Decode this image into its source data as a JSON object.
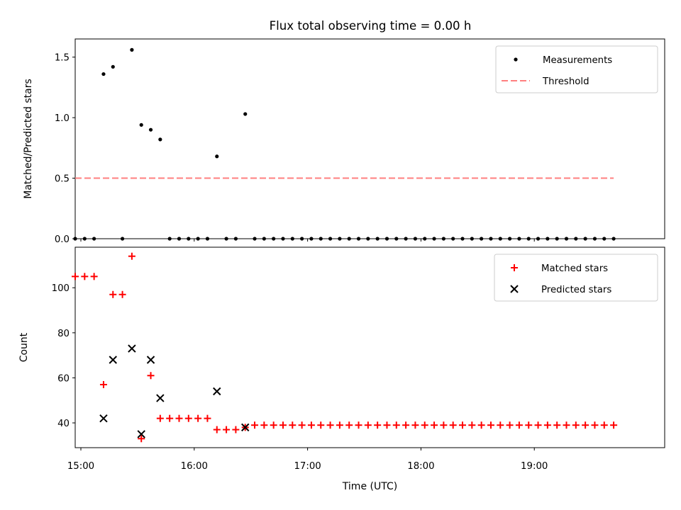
{
  "figure": {
    "title": "Flux total observing time = 0.00 h"
  },
  "chart_data": [
    {
      "type": "scatter",
      "ylabel": "Matched/Predicted stars",
      "xlabel": "",
      "xlim": [
        "14:57",
        "20:09"
      ],
      "ylim": [
        0,
        1.65
      ],
      "yticks": [
        0.0,
        0.5,
        1.0,
        1.5
      ],
      "ytick_labels": [
        "0.0",
        "0.5",
        "1.0",
        "1.5"
      ],
      "xticks": [
        "15:00",
        "16:00",
        "17:00",
        "18:00",
        "19:00"
      ],
      "legend": {
        "placement": "top-right",
        "entries": [
          "Measurements",
          "Threshold"
        ]
      },
      "series": [
        {
          "name": "Measurements",
          "color": "#000000",
          "marker": "dot",
          "points": [
            [
              "14:57",
              0.0
            ],
            [
              "15:02",
              0.0
            ],
            [
              "15:07",
              0.0
            ],
            [
              "15:12",
              1.36
            ],
            [
              "15:17",
              1.42
            ],
            [
              "15:22",
              0.0
            ],
            [
              "15:27",
              1.56
            ],
            [
              "15:32",
              0.94
            ],
            [
              "15:37",
              0.9
            ],
            [
              "15:42",
              0.82
            ],
            [
              "15:47",
              0.0
            ],
            [
              "15:52",
              0.0
            ],
            [
              "15:57",
              0.0
            ],
            [
              "16:02",
              0.0
            ],
            [
              "16:07",
              0.0
            ],
            [
              "16:12",
              0.68
            ],
            [
              "16:17",
              0.0
            ],
            [
              "16:22",
              0.0
            ],
            [
              "16:27",
              1.03
            ],
            [
              "16:32",
              0.0
            ],
            [
              "16:37",
              0.0
            ],
            [
              "16:42",
              0.0
            ],
            [
              "16:47",
              0.0
            ],
            [
              "16:52",
              0.0
            ],
            [
              "16:57",
              0.0
            ],
            [
              "17:02",
              0.0
            ],
            [
              "17:07",
              0.0
            ],
            [
              "17:12",
              0.0
            ],
            [
              "17:17",
              0.0
            ],
            [
              "17:22",
              0.0
            ],
            [
              "17:27",
              0.0
            ],
            [
              "17:32",
              0.0
            ],
            [
              "17:37",
              0.0
            ],
            [
              "17:42",
              0.0
            ],
            [
              "17:47",
              0.0
            ],
            [
              "17:52",
              0.0
            ],
            [
              "17:57",
              0.0
            ],
            [
              "18:02",
              0.0
            ],
            [
              "18:07",
              0.0
            ],
            [
              "18:12",
              0.0
            ],
            [
              "18:17",
              0.0
            ],
            [
              "18:22",
              0.0
            ],
            [
              "18:27",
              0.0
            ],
            [
              "18:32",
              0.0
            ],
            [
              "18:37",
              0.0
            ],
            [
              "18:42",
              0.0
            ],
            [
              "18:47",
              0.0
            ],
            [
              "18:52",
              0.0
            ],
            [
              "18:57",
              0.0
            ],
            [
              "19:02",
              0.0
            ],
            [
              "19:07",
              0.0
            ],
            [
              "19:12",
              0.0
            ],
            [
              "19:17",
              0.0
            ],
            [
              "19:22",
              0.0
            ],
            [
              "19:27",
              0.0
            ],
            [
              "19:32",
              0.0
            ],
            [
              "19:37",
              0.0
            ],
            [
              "19:42",
              0.0
            ]
          ]
        },
        {
          "name": "Threshold",
          "color": "#ff7f7f",
          "style": "dashed",
          "points": [
            [
              "14:57",
              0.5
            ],
            [
              "19:42",
              0.5
            ]
          ]
        }
      ]
    },
    {
      "type": "scatter",
      "ylabel": "Count",
      "xlabel": "Time (UTC)",
      "xlim": [
        "14:57",
        "20:09"
      ],
      "ylim": [
        29,
        118
      ],
      "yticks": [
        40,
        60,
        80,
        100
      ],
      "ytick_labels": [
        "40",
        "60",
        "80",
        "100"
      ],
      "xticks": [
        "15:00",
        "16:00",
        "17:00",
        "18:00",
        "19:00"
      ],
      "legend": {
        "placement": "top-right",
        "entries": [
          "Matched stars",
          "Predicted stars"
        ]
      },
      "series": [
        {
          "name": "Matched stars",
          "color": "#ff0000",
          "marker": "plus",
          "points": [
            [
              "14:57",
              105
            ],
            [
              "15:02",
              105
            ],
            [
              "15:07",
              105
            ],
            [
              "15:12",
              57
            ],
            [
              "15:17",
              97
            ],
            [
              "15:22",
              97
            ],
            [
              "15:27",
              114
            ],
            [
              "15:32",
              33
            ],
            [
              "15:37",
              61
            ],
            [
              "15:42",
              42
            ],
            [
              "15:47",
              42
            ],
            [
              "15:52",
              42
            ],
            [
              "15:57",
              42
            ],
            [
              "16:02",
              42
            ],
            [
              "16:07",
              42
            ],
            [
              "16:12",
              37
            ],
            [
              "16:17",
              37
            ],
            [
              "16:22",
              37
            ],
            [
              "16:27",
              38
            ],
            [
              "16:32",
              39
            ],
            [
              "16:37",
              39
            ],
            [
              "16:42",
              39
            ],
            [
              "16:47",
              39
            ],
            [
              "16:52",
              39
            ],
            [
              "16:57",
              39
            ],
            [
              "17:02",
              39
            ],
            [
              "17:07",
              39
            ],
            [
              "17:12",
              39
            ],
            [
              "17:17",
              39
            ],
            [
              "17:22",
              39
            ],
            [
              "17:27",
              39
            ],
            [
              "17:32",
              39
            ],
            [
              "17:37",
              39
            ],
            [
              "17:42",
              39
            ],
            [
              "17:47",
              39
            ],
            [
              "17:52",
              39
            ],
            [
              "17:57",
              39
            ],
            [
              "18:02",
              39
            ],
            [
              "18:07",
              39
            ],
            [
              "18:12",
              39
            ],
            [
              "18:17",
              39
            ],
            [
              "18:22",
              39
            ],
            [
              "18:27",
              39
            ],
            [
              "18:32",
              39
            ],
            [
              "18:37",
              39
            ],
            [
              "18:42",
              39
            ],
            [
              "18:47",
              39
            ],
            [
              "18:52",
              39
            ],
            [
              "18:57",
              39
            ],
            [
              "19:02",
              39
            ],
            [
              "19:07",
              39
            ],
            [
              "19:12",
              39
            ],
            [
              "19:17",
              39
            ],
            [
              "19:22",
              39
            ],
            [
              "19:27",
              39
            ],
            [
              "19:32",
              39
            ],
            [
              "19:37",
              39
            ],
            [
              "19:42",
              39
            ]
          ]
        },
        {
          "name": "Predicted stars",
          "color": "#000000",
          "marker": "x",
          "points": [
            [
              "15:12",
              42
            ],
            [
              "15:17",
              68
            ],
            [
              "15:27",
              73
            ],
            [
              "15:32",
              35
            ],
            [
              "15:37",
              68
            ],
            [
              "15:42",
              51
            ],
            [
              "16:12",
              54
            ],
            [
              "16:27",
              38
            ]
          ]
        }
      ]
    }
  ]
}
